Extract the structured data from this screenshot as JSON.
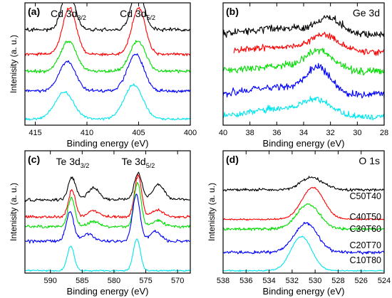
{
  "colors": {
    "C50T40": "#000000",
    "C40T50": "#ff0000",
    "C30T60": "#00dd00",
    "C20T70": "#0000ff",
    "C10T80": "#00e5ee"
  },
  "chart_data": [
    {
      "id": "a",
      "type": "line",
      "panel_label": "(a)",
      "annotations": [
        {
          "main": "Cd 3d",
          "sub": "3/2",
          "x": 411.8
        },
        {
          "main": "Cd 3d",
          "sub": "5/2",
          "x": 405.1
        }
      ],
      "xlabel": "Binding energy (eV)",
      "ylabel": "Intenisity (a. u.)",
      "xlim": [
        416,
        400
      ],
      "xticks": [
        415,
        410,
        405,
        400
      ],
      "x_reversed": true,
      "series": [
        {
          "key": "C50T40",
          "peaks": [
            [
              411.8,
              0.6,
              0.34
            ],
            [
              405.1,
              0.6,
              0.34
            ]
          ],
          "offset": 0.78,
          "noise": 0.015
        },
        {
          "key": "C40T50",
          "peaks": [
            [
              411.7,
              0.65,
              0.38
            ],
            [
              405.0,
              0.65,
              0.38
            ]
          ],
          "offset": 0.58,
          "noise": 0.012
        },
        {
          "key": "C30T60",
          "peaks": [
            [
              411.8,
              0.75,
              0.25
            ],
            [
              405.1,
              0.75,
              0.25
            ]
          ],
          "offset": 0.44,
          "noise": 0.012
        },
        {
          "key": "C20T70",
          "peaks": [
            [
              411.9,
              0.8,
              0.24
            ],
            [
              405.3,
              0.8,
              0.3
            ]
          ],
          "offset": 0.28,
          "noise": 0.012
        },
        {
          "key": "C10T80",
          "peaks": [
            [
              412.2,
              0.9,
              0.22
            ],
            [
              405.5,
              0.9,
              0.28
            ]
          ],
          "offset": 0.05,
          "noise": 0.01
        }
      ]
    },
    {
      "id": "b",
      "type": "line",
      "panel_label": "(b)",
      "title": "Ge 3d",
      "xlabel": "Binding energy (eV)",
      "ylabel": "",
      "xlim": [
        40,
        28
      ],
      "xticks": [
        40,
        38,
        36,
        34,
        32,
        30,
        28
      ],
      "x_reversed": true,
      "series": [
        {
          "key": "C50T40",
          "peaks": [
            [
              32.1,
              0.9,
              0.12
            ],
            [
              35.5,
              2.5,
              0.05
            ]
          ],
          "offset": 0.74,
          "noise": 0.03,
          "xrange": [
            40,
            28
          ]
        },
        {
          "key": "C40T50",
          "peaks": [
            [
              32.4,
              1.0,
              0.12
            ],
            [
              35.5,
              2.5,
              0.04
            ]
          ],
          "offset": 0.6,
          "noise": 0.025,
          "xrange": [
            39.2,
            28
          ]
        },
        {
          "key": "C30T60",
          "peaks": [
            [
              32.8,
              1.0,
              0.15
            ],
            [
              35.5,
              2.5,
              0.04
            ]
          ],
          "offset": 0.44,
          "noise": 0.03,
          "xrange": [
            40,
            28
          ]
        },
        {
          "key": "C20T70",
          "peaks": [
            [
              32.9,
              0.9,
              0.2
            ],
            [
              35.8,
              2.2,
              0.06
            ]
          ],
          "offset": 0.25,
          "noise": 0.03,
          "xrange": [
            40,
            28
          ]
        },
        {
          "key": "C10T80",
          "peaks": [
            [
              33.0,
              1.1,
              0.12
            ],
            [
              36.0,
              2.0,
              0.06
            ]
          ],
          "offset": 0.07,
          "noise": 0.025,
          "xrange": [
            40,
            28
          ]
        }
      ]
    },
    {
      "id": "c",
      "type": "line",
      "panel_label": "(c)",
      "annotations": [
        {
          "main": "Te 3d",
          "sub": "3/2",
          "x": 586.5
        },
        {
          "main": "Te 3d",
          "sub": "5/2",
          "x": 576.2
        }
      ],
      "xlabel": "Binding energy (eV)",
      "ylabel": "Intenisity (a. u.)",
      "xlim": [
        594,
        568
      ],
      "xticks": [
        590,
        585,
        580,
        575,
        570
      ],
      "x_reversed": true,
      "series": [
        {
          "key": "C50T40",
          "peaks": [
            [
              586.6,
              0.6,
              0.18
            ],
            [
              583.2,
              0.9,
              0.1
            ],
            [
              576.2,
              0.6,
              0.22
            ],
            [
              573.0,
              0.9,
              0.12
            ]
          ],
          "offset": 0.6,
          "noise": 0.012
        },
        {
          "key": "C40T50",
          "peaks": [
            [
              586.6,
              0.55,
              0.22
            ],
            [
              583.2,
              0.9,
              0.05
            ],
            [
              576.2,
              0.55,
              0.34
            ],
            [
              573.2,
              0.9,
              0.06
            ]
          ],
          "offset": 0.46,
          "noise": 0.012
        },
        {
          "key": "C30T60",
          "peaks": [
            [
              586.7,
              0.55,
              0.24
            ],
            [
              583.2,
              0.9,
              0.04
            ],
            [
              576.3,
              0.55,
              0.36
            ],
            [
              573.1,
              0.9,
              0.05
            ]
          ],
          "offset": 0.38,
          "noise": 0.012
        },
        {
          "key": "C20T70",
          "peaks": [
            [
              586.9,
              0.6,
              0.24
            ],
            [
              584.0,
              0.9,
              0.06
            ],
            [
              576.5,
              0.6,
              0.38
            ],
            [
              573.5,
              0.9,
              0.08
            ]
          ],
          "offset": 0.26,
          "noise": 0.012
        },
        {
          "key": "C10T80",
          "peaks": [
            [
              586.8,
              0.55,
              0.2
            ],
            [
              576.4,
              0.55,
              0.26
            ]
          ],
          "offset": 0.02,
          "noise": 0.006
        }
      ]
    },
    {
      "id": "d",
      "type": "line",
      "panel_label": "(d)",
      "title": "O 1s",
      "xlabel": "Binding energy (eV)",
      "ylabel": "Intenisity (a. u.)",
      "xlim": [
        538,
        524
      ],
      "xticks": [
        538,
        536,
        534,
        532,
        530,
        528,
        526,
        524
      ],
      "x_reversed": true,
      "legend_position": "right",
      "series": [
        {
          "key": "C50T40",
          "name": "C50T40",
          "peaks": [
            [
              530.3,
              1.0,
              0.1
            ]
          ],
          "offset": 0.68,
          "noise": 0.012
        },
        {
          "key": "C40T50",
          "name": "C40T50",
          "peaks": [
            [
              530.2,
              0.95,
              0.26
            ]
          ],
          "offset": 0.44,
          "noise": 0.006
        },
        {
          "key": "C30T60",
          "name": "C30T60",
          "peaks": [
            [
              530.6,
              1.0,
              0.2
            ]
          ],
          "offset": 0.36,
          "noise": 0.012
        },
        {
          "key": "C20T70",
          "name": "C20T70",
          "peaks": [
            [
              530.8,
              1.0,
              0.24
            ]
          ],
          "offset": 0.17,
          "noise": 0.012
        },
        {
          "key": "C10T80",
          "name": "C10T80",
          "peaks": [
            [
              531.2,
              0.9,
              0.28
            ]
          ],
          "offset": 0.02,
          "noise": 0.005
        }
      ]
    }
  ]
}
